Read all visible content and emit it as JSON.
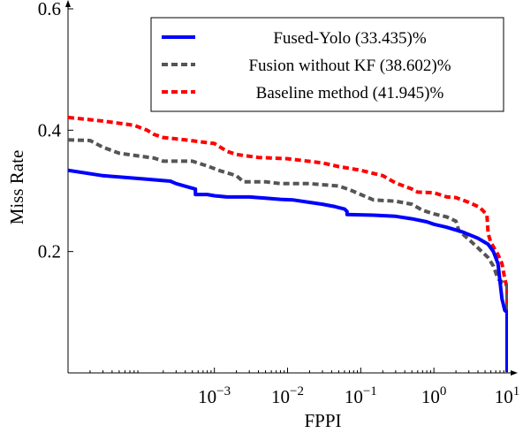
{
  "chart_data": {
    "type": "line",
    "xlabel": "FPPI",
    "ylabel": "Miss Rate",
    "xscale": "log",
    "xlim": [
      1e-05,
      10
    ],
    "ylim": [
      0,
      0.6
    ],
    "x_ticks": [
      {
        "value": 0.001,
        "base": "10",
        "exp": "−3"
      },
      {
        "value": 0.01,
        "base": "10",
        "exp": "−2"
      },
      {
        "value": 0.1,
        "base": "10",
        "exp": "−1"
      },
      {
        "value": 1,
        "base": "10",
        "exp": "0"
      },
      {
        "value": 10,
        "base": "10",
        "exp": "1"
      }
    ],
    "y_ticks": [
      {
        "value": 0.2,
        "label": "0.2"
      },
      {
        "value": 0.4,
        "label": "0.4"
      },
      {
        "value": 0.6,
        "label": "0.6"
      }
    ],
    "legend_position": "top-right",
    "series": [
      {
        "name": "Fused-Yolo (33.435)%",
        "color": "#0000ff",
        "style": "solid",
        "points": [
          [
            1e-05,
            0.334
          ],
          [
            3e-05,
            0.325
          ],
          [
            0.0001,
            0.32
          ],
          [
            0.00025,
            0.316
          ],
          [
            0.0003,
            0.312
          ],
          [
            0.00045,
            0.306
          ],
          [
            0.00055,
            0.303
          ],
          [
            0.00055,
            0.294
          ],
          [
            0.0008,
            0.294
          ],
          [
            0.001,
            0.292
          ],
          [
            0.0015,
            0.29
          ],
          [
            0.003,
            0.29
          ],
          [
            0.005,
            0.288
          ],
          [
            0.008,
            0.286
          ],
          [
            0.012,
            0.285
          ],
          [
            0.02,
            0.281
          ],
          [
            0.03,
            0.278
          ],
          [
            0.045,
            0.274
          ],
          [
            0.06,
            0.27
          ],
          [
            0.065,
            0.266
          ],
          [
            0.065,
            0.261
          ],
          [
            0.15,
            0.26
          ],
          [
            0.3,
            0.258
          ],
          [
            0.5,
            0.254
          ],
          [
            0.8,
            0.249
          ],
          [
            1.0,
            0.245
          ],
          [
            1.5,
            0.24
          ],
          [
            2.5,
            0.232
          ],
          [
            4,
            0.222
          ],
          [
            5.5,
            0.212
          ],
          [
            6.5,
            0.2
          ],
          [
            7.5,
            0.18
          ],
          [
            8.0,
            0.15
          ],
          [
            8.5,
            0.122
          ],
          [
            9.3,
            0.103
          ],
          [
            10,
            0.1
          ],
          [
            10,
            0.0
          ]
        ]
      },
      {
        "name": "Fusion without KF (38.602)%",
        "color": "#555555",
        "style": "dashed",
        "points": [
          [
            1e-05,
            0.384
          ],
          [
            2e-05,
            0.383
          ],
          [
            3e-05,
            0.372
          ],
          [
            5e-05,
            0.362
          ],
          [
            0.0001,
            0.357
          ],
          [
            0.00015,
            0.354
          ],
          [
            0.0002,
            0.349
          ],
          [
            0.0005,
            0.349
          ],
          [
            0.0008,
            0.341
          ],
          [
            0.0012,
            0.333
          ],
          [
            0.002,
            0.325
          ],
          [
            0.0025,
            0.315
          ],
          [
            0.005,
            0.315
          ],
          [
            0.008,
            0.312
          ],
          [
            0.02,
            0.312
          ],
          [
            0.05,
            0.308
          ],
          [
            0.07,
            0.302
          ],
          [
            0.1,
            0.294
          ],
          [
            0.15,
            0.285
          ],
          [
            0.3,
            0.283
          ],
          [
            0.5,
            0.278
          ],
          [
            0.7,
            0.268
          ],
          [
            1.0,
            0.262
          ],
          [
            1.5,
            0.257
          ],
          [
            2.0,
            0.25
          ],
          [
            2.2,
            0.234
          ],
          [
            3,
            0.22
          ],
          [
            4,
            0.206
          ],
          [
            5.5,
            0.19
          ],
          [
            6.5,
            0.176
          ],
          [
            7.5,
            0.155
          ],
          [
            8.5,
            0.15
          ],
          [
            10,
            0.145
          ],
          [
            10,
            0.0
          ]
        ]
      },
      {
        "name": "Baseline method (41.945)%",
        "color": "#ff0000",
        "style": "dashed",
        "points": [
          [
            1e-05,
            0.421
          ],
          [
            3e-05,
            0.415
          ],
          [
            8e-05,
            0.408
          ],
          [
            0.00012,
            0.4
          ],
          [
            0.00015,
            0.393
          ],
          [
            0.0002,
            0.388
          ],
          [
            0.0004,
            0.384
          ],
          [
            0.001,
            0.378
          ],
          [
            0.0015,
            0.365
          ],
          [
            0.002,
            0.36
          ],
          [
            0.004,
            0.355
          ],
          [
            0.01,
            0.353
          ],
          [
            0.03,
            0.346
          ],
          [
            0.05,
            0.34
          ],
          [
            0.1,
            0.334
          ],
          [
            0.2,
            0.325
          ],
          [
            0.3,
            0.313
          ],
          [
            0.5,
            0.303
          ],
          [
            0.6,
            0.298
          ],
          [
            1.0,
            0.297
          ],
          [
            1.5,
            0.29
          ],
          [
            2.0,
            0.289
          ],
          [
            3,
            0.281
          ],
          [
            4.2,
            0.273
          ],
          [
            4.8,
            0.266
          ],
          [
            5.3,
            0.26
          ],
          [
            5.5,
            0.23
          ],
          [
            6.0,
            0.215
          ],
          [
            7.5,
            0.195
          ],
          [
            8.5,
            0.18
          ],
          [
            9.3,
            0.155
          ],
          [
            10,
            0.14
          ],
          [
            10,
            0.0
          ]
        ]
      }
    ]
  }
}
